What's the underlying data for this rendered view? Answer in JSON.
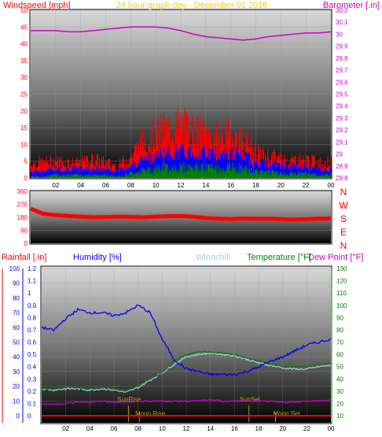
{
  "colors": {
    "wind": "#ff0000",
    "gust_dark": "#7a0000",
    "wind_avg": "#0000ff",
    "wind_low": "#008000",
    "barometer": "#cc00cc",
    "wind_dir": "#ff0000",
    "humidity": "#0000ff",
    "temperature": "#008000",
    "windchill": "#aaccee",
    "dewpoint": "#cc00cc",
    "rainfall": "#ff0000",
    "sun_marker": "#cc9900",
    "moon_marker": "#cc9900",
    "title": "#ffcc00",
    "compass": "#ff0000",
    "left_axis": "#ff0000",
    "right_axis_baro": "#cc00cc",
    "humidity_axis": "#0000ff",
    "temperature_axis": "#008000"
  },
  "chart_data": [
    {
      "type": "line",
      "panel": "wind-barometer",
      "title": "24 hour graph day - December 01 2016",
      "ylabel_left": "Windspeed [mph]",
      "ylabel_right": "Barometer [.in]",
      "ylim_left": [
        0,
        50
      ],
      "ylim_right": [
        28.8,
        30.2
      ],
      "left_ticks": [
        "0",
        "5",
        "10",
        "15",
        "20",
        "25",
        "30",
        "35",
        "40",
        "45",
        "50"
      ],
      "right_ticks": [
        "28.8",
        "28.9",
        "29",
        "29.1",
        "29.2",
        "29.3",
        "29.4",
        "29.5",
        "29.6",
        "29.7",
        "29.8",
        "29.9",
        "30",
        "30.1",
        "30.2"
      ],
      "x_ticks": [
        "02",
        "04",
        "06",
        "08",
        "10",
        "12",
        "14",
        "16",
        "18",
        "20",
        "22",
        "00"
      ],
      "x_hours": [
        0,
        1,
        2,
        3,
        4,
        5,
        6,
        7,
        8,
        9,
        10,
        11,
        12,
        13,
        14,
        15,
        16,
        17,
        18,
        19,
        20,
        21,
        22,
        23,
        24
      ],
      "series": [
        {
          "key": "gust",
          "values": [
            5,
            5,
            5.5,
            5,
            5,
            6,
            5,
            4,
            7,
            12,
            14,
            16,
            17,
            15,
            14,
            13,
            14,
            12,
            8,
            7,
            6,
            6,
            6,
            5,
            5
          ]
        },
        {
          "key": "wind",
          "values": [
            2,
            2.5,
            3,
            3,
            3,
            3,
            3,
            2.5,
            4,
            6,
            7.5,
            8,
            8.5,
            8,
            8,
            7.5,
            8,
            7,
            5,
            4.5,
            4,
            4,
            3.5,
            3,
            3
          ]
        },
        {
          "key": "low",
          "values": [
            0.5,
            0.5,
            1,
            1,
            1,
            1,
            1,
            0.5,
            1.5,
            2.5,
            3,
            3.5,
            3.5,
            3.5,
            3.5,
            3,
            3.5,
            3,
            2,
            2,
            1.5,
            1.5,
            1.5,
            1,
            1
          ]
        },
        {
          "key": "barometer",
          "values": [
            30.03,
            30.03,
            30.03,
            30.02,
            30.02,
            30.03,
            30.04,
            30.05,
            30.06,
            30.06,
            30.06,
            30.05,
            30.03,
            30.0,
            29.98,
            29.97,
            29.96,
            29.95,
            29.96,
            29.98,
            29.99,
            30.0,
            30.01,
            30.01,
            30.02
          ]
        }
      ]
    },
    {
      "type": "line",
      "panel": "wind-direction",
      "ylim": [
        0,
        360
      ],
      "y_ticks": [
        "0",
        "90",
        "180",
        "270",
        "360"
      ],
      "compass": [
        "N",
        "W",
        "S",
        "E",
        "N"
      ],
      "x_hours": [
        0,
        1,
        2,
        3,
        4,
        5,
        6,
        7,
        8,
        9,
        10,
        11,
        12,
        13,
        14,
        15,
        16,
        17,
        18,
        19,
        20,
        21,
        22,
        23,
        24
      ],
      "values": [
        240,
        205,
        195,
        190,
        185,
        180,
        182,
        185,
        183,
        180,
        185,
        188,
        190,
        185,
        175,
        170,
        168,
        172,
        170,
        170,
        168,
        165,
        168,
        170,
        172
      ]
    },
    {
      "type": "line",
      "panel": "humidity-temperature",
      "ylabel_rainfall": "Rainfall [.in]",
      "ylabel_humidity": "Humidity [%]",
      "label_windchill": "Windchill",
      "ylabel_temperature": "Temperature [°F]",
      "ylabel_dewpoint": "Dew Point [°F]",
      "ylim_humidity": [
        0,
        100
      ],
      "ylim_rainfall": [
        0,
        1.2
      ],
      "ylim_temperature": [
        10,
        130
      ],
      "humidity_ticks": [
        "0",
        "10",
        "20",
        "30",
        "40",
        "50",
        "60",
        "70",
        "80",
        "90",
        "100"
      ],
      "rainfall_ticks": [
        "0",
        "0.1",
        "0.2",
        "0.3",
        "0.4",
        "0.5",
        "0.6",
        "0.7",
        "0.8",
        "0.9",
        "1",
        "1.1",
        "1.2"
      ],
      "temperature_ticks": [
        "10",
        "20",
        "30",
        "40",
        "50",
        "60",
        "70",
        "80",
        "90",
        "100",
        "110",
        "120",
        "130"
      ],
      "x_ticks": [
        "02",
        "04",
        "06",
        "08",
        "10",
        "12",
        "14",
        "16",
        "18",
        "20",
        "22",
        "00"
      ],
      "x_hours": [
        0,
        1,
        2,
        3,
        4,
        5,
        6,
        7,
        8,
        9,
        10,
        11,
        12,
        13,
        14,
        15,
        16,
        17,
        18,
        19,
        20,
        21,
        22,
        23,
        24
      ],
      "series": [
        {
          "key": "humidity",
          "values": [
            60,
            58,
            66,
            72,
            70,
            70,
            68,
            70,
            75,
            70,
            52,
            38,
            32,
            30,
            28,
            28,
            28,
            30,
            33,
            37,
            40,
            44,
            48,
            50,
            52
          ]
        },
        {
          "key": "temperature",
          "values": [
            32,
            32,
            33,
            33,
            32,
            33,
            32,
            31,
            35,
            40,
            45,
            55,
            60,
            62,
            62,
            61,
            60,
            57,
            55,
            52,
            50,
            50,
            50,
            52,
            53
          ]
        },
        {
          "key": "windchill",
          "values": [
            32,
            31,
            32,
            32,
            31,
            32,
            31,
            29,
            33,
            39,
            45,
            52,
            58,
            60,
            61,
            60,
            59,
            56,
            53,
            51,
            49,
            48,
            48,
            50,
            51
          ]
        },
        {
          "key": "dewpoint",
          "values": [
            20,
            19,
            20,
            21,
            21,
            22,
            21,
            21,
            22,
            22,
            22,
            22,
            22,
            22,
            23,
            22,
            22,
            22,
            22,
            22,
            21,
            21,
            22,
            22,
            23
          ]
        },
        {
          "key": "rainfall",
          "values": [
            0,
            0,
            0,
            0,
            0,
            0,
            0,
            0,
            0,
            0,
            0,
            0,
            0,
            0,
            0,
            0,
            0,
            0,
            0,
            0,
            0,
            0,
            0,
            0,
            0
          ]
        }
      ],
      "annotations": [
        {
          "label": "SunRise",
          "hour": 7.2,
          "row": "upper"
        },
        {
          "label": "Moon Rise",
          "hour": 8.1,
          "row": "lower"
        },
        {
          "label": "SunSet",
          "hour": 17.2,
          "row": "upper"
        },
        {
          "label": "Moon Set",
          "hour": 19.4,
          "row": "lower"
        }
      ]
    }
  ]
}
